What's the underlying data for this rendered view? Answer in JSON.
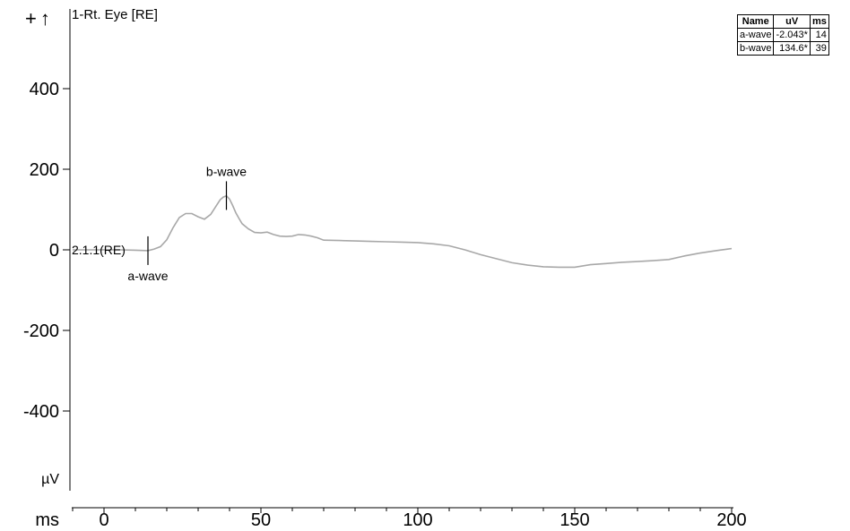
{
  "toolbar": {
    "zoom_in_icon": "plus-icon",
    "zoom_in_glyph": "+",
    "step_up_icon": "arrow-up-icon",
    "step_up_glyph": "↑"
  },
  "trace": {
    "title": "1-Rt. Eye [RE]",
    "label": "2.1.1(RE)"
  },
  "table": {
    "headers": [
      "Name",
      "uV",
      "ms"
    ],
    "rows": [
      [
        "a-wave",
        "-2.043*",
        "14"
      ],
      [
        "b-wave",
        "134.6*",
        "39"
      ]
    ]
  },
  "chart_data": {
    "type": "line",
    "xlabel": "ms",
    "ylabel": "µV",
    "xlim": [
      -10,
      200
    ],
    "ylim": [
      -590,
      590
    ],
    "xticks": [
      0,
      50,
      100,
      150,
      200
    ],
    "yticks": [
      400,
      200,
      0,
      -200,
      -400
    ],
    "grid": false,
    "series": [
      {
        "color": "#a8a8a8",
        "x": [
          -10,
          0,
          5,
          10,
          14,
          16,
          18,
          20,
          22,
          24,
          26,
          28,
          30,
          32,
          34,
          36,
          37,
          38,
          39,
          40,
          41,
          42,
          43,
          44,
          46,
          48,
          50,
          52,
          54,
          56,
          58,
          60,
          62,
          64,
          66,
          68,
          70,
          75,
          80,
          85,
          90,
          95,
          100,
          105,
          110,
          115,
          120,
          125,
          130,
          135,
          140,
          145,
          150,
          155,
          160,
          165,
          170,
          175,
          180,
          185,
          190,
          195,
          200
        ],
        "y": [
          0,
          0,
          0,
          -1,
          -2,
          2,
          8,
          25,
          55,
          80,
          90,
          90,
          82,
          76,
          88,
          112,
          124,
          131,
          134,
          126,
          110,
          92,
          78,
          65,
          52,
          43,
          42,
          44,
          38,
          34,
          33,
          34,
          38,
          37,
          34,
          30,
          24,
          23,
          22,
          21,
          20,
          19,
          18,
          15,
          10,
          0,
          -12,
          -22,
          -32,
          -38,
          -42,
          -43,
          -43,
          -37,
          -34,
          -31,
          -29,
          -27,
          -24,
          -15,
          -8,
          -2,
          3
        ]
      }
    ],
    "annotations": [
      {
        "text": "a-wave",
        "x": 14,
        "y": -2.043
      },
      {
        "text": "b-wave",
        "x": 39,
        "y": 134.6
      }
    ]
  }
}
